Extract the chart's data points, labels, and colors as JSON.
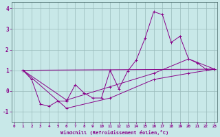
{
  "background_color": "#c8e8e8",
  "line_color": "#880088",
  "grid_color": "#99bbbb",
  "xlabel": "Windchill (Refroidissement éolien,°C)",
  "ylim": [
    -1.5,
    4.3
  ],
  "xlim": [
    -0.3,
    23.3
  ],
  "yticks": [
    -1,
    0,
    1,
    2,
    3,
    4
  ],
  "xticks": [
    0,
    1,
    2,
    3,
    4,
    5,
    6,
    7,
    8,
    9,
    10,
    11,
    12,
    13,
    14,
    15,
    16,
    17,
    18,
    19,
    20,
    21,
    22,
    23
  ],
  "series1_x": [
    1,
    2,
    3,
    4,
    5,
    6,
    7,
    8,
    9,
    10,
    11,
    12,
    13,
    14,
    15,
    16,
    17,
    18,
    19,
    20,
    21,
    22,
    23
  ],
  "series1_y": [
    1.0,
    0.55,
    -0.65,
    -0.75,
    -0.5,
    -0.5,
    0.3,
    -0.1,
    -0.35,
    -0.35,
    1.0,
    0.1,
    0.95,
    1.5,
    2.55,
    3.85,
    3.7,
    2.35,
    2.65,
    1.55,
    1.35,
    1.05,
    1.05
  ],
  "series2_x": [
    1,
    23
  ],
  "series2_y": [
    1.0,
    1.05
  ],
  "series3_x": [
    1,
    6,
    11,
    16,
    20,
    23
  ],
  "series3_y": [
    1.0,
    -0.45,
    0.2,
    0.85,
    1.55,
    1.05
  ],
  "series4_x": [
    1,
    6,
    11,
    16,
    20,
    23
  ],
  "series4_y": [
    1.0,
    -0.85,
    -0.35,
    0.55,
    0.85,
    1.05
  ]
}
